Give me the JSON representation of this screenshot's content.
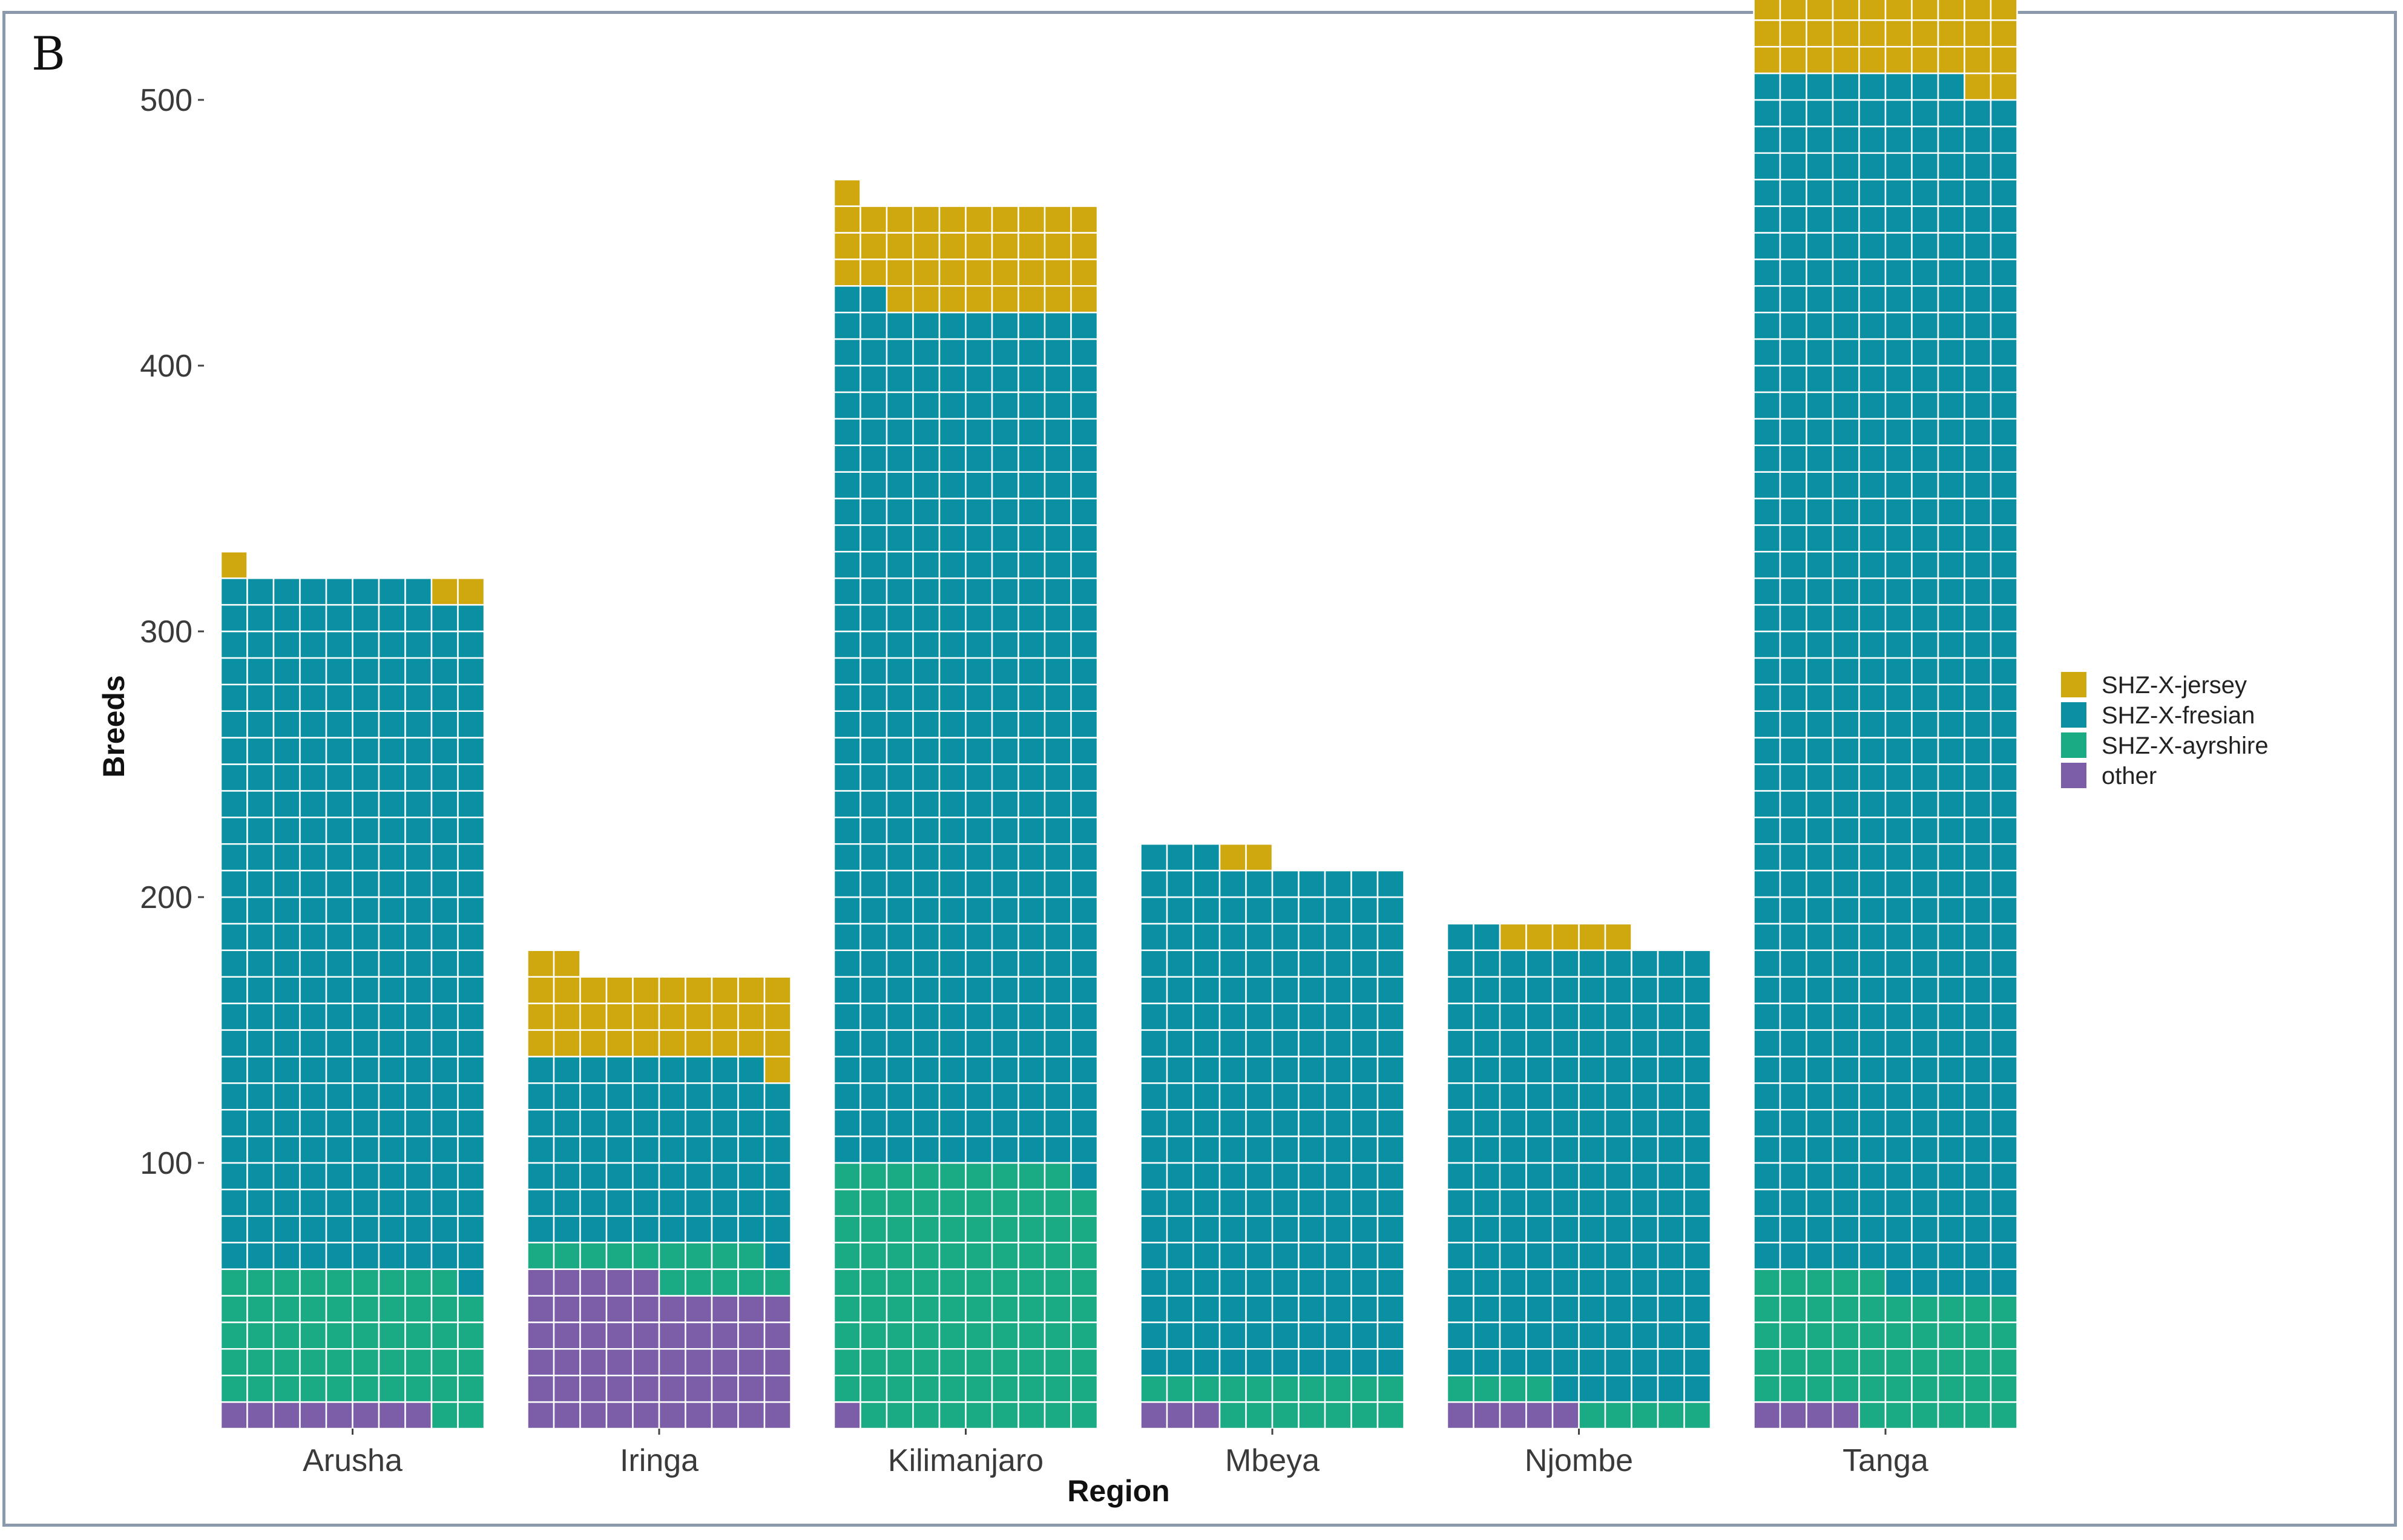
{
  "panel_label": "B",
  "chart_data": {
    "type": "waffle",
    "title": "",
    "xlabel": "Region",
    "ylabel": "Breeds",
    "ylim": [
      0,
      540
    ],
    "yticks": [
      100,
      200,
      300,
      400,
      500
    ],
    "unit_per_cell": 10,
    "columns_per_bar": 10,
    "categories": [
      "Arusha",
      "Iringa",
      "Kilimanjaro",
      "Mbeya",
      "Njombe",
      "Tanga"
    ],
    "series": [
      {
        "name": "other",
        "color": "#7b5ea7",
        "values": [
          8,
          55,
          1,
          3,
          5,
          4
        ]
      },
      {
        "name": "SHZ-X-ayrshire",
        "color": "#1aab84",
        "values": [
          51,
          14,
          98,
          17,
          9,
          51
        ]
      },
      {
        "name": "SHZ-X-fresian",
        "color": "#0a8fa3",
        "values": [
          259,
          70,
          323,
          193,
          168,
          453
        ]
      },
      {
        "name": "SHZ-X-jersey",
        "color": "#cfa70f",
        "values": [
          3,
          33,
          39,
          2,
          5,
          33
        ]
      }
    ],
    "legend_order": [
      "SHZ-X-jersey",
      "SHZ-X-fresian",
      "SHZ-X-ayrshire",
      "other"
    ],
    "legend_position": "right"
  }
}
